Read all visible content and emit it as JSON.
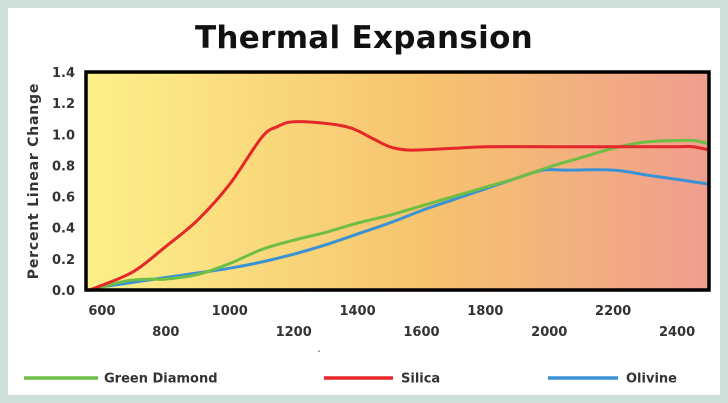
{
  "colors": {
    "background": "#cfe0da",
    "panel": "#ffffff",
    "gradient_left": "#fdf08a",
    "gradient_mid": "#f6c36e",
    "gradient_right": "#ef9e8e",
    "silica": "#e5262b",
    "green_diamond": "#6ebe46",
    "olivine": "#3a92d4"
  },
  "chart_data": {
    "type": "line",
    "title": "Thermal Expansion",
    "ylabel": "Percent Linear Change",
    "xlabel": "",
    "xlim": [
      550,
      2500
    ],
    "ylim": [
      0,
      1.4
    ],
    "grid": false,
    "legend_position": "bottom",
    "x_ticks_upper": [
      "600",
      "1000",
      "1400",
      "1800",
      "2200"
    ],
    "x_ticks_lower": [
      "800",
      "1200",
      "1600",
      "2000",
      "2400"
    ],
    "y_ticks": [
      "0.0",
      "0.2",
      "0.4",
      "0.6",
      "0.8",
      "1.0",
      "1.2",
      "1.4"
    ],
    "series": [
      {
        "name": "Green Diamond",
        "color": "#6ebe46",
        "x": [
          560,
          600,
          680,
          750,
          800,
          900,
          1000,
          1100,
          1200,
          1300,
          1400,
          1500,
          1600,
          1700,
          1800,
          1900,
          2000,
          2100,
          2200,
          2300,
          2400,
          2450,
          2500
        ],
        "y": [
          0.0,
          0.02,
          0.06,
          0.07,
          0.07,
          0.1,
          0.17,
          0.26,
          0.32,
          0.37,
          0.43,
          0.48,
          0.54,
          0.6,
          0.66,
          0.72,
          0.79,
          0.85,
          0.91,
          0.95,
          0.96,
          0.96,
          0.94
        ]
      },
      {
        "name": "Silica",
        "color": "#e5262b",
        "x": [
          560,
          600,
          700,
          800,
          900,
          1000,
          1100,
          1150,
          1200,
          1300,
          1380,
          1450,
          1500,
          1550,
          1600,
          1700,
          1800,
          2000,
          2200,
          2400,
          2450,
          2500
        ],
        "y": [
          0.0,
          0.03,
          0.12,
          0.28,
          0.45,
          0.68,
          0.98,
          1.05,
          1.08,
          1.07,
          1.04,
          0.97,
          0.92,
          0.9,
          0.9,
          0.91,
          0.92,
          0.92,
          0.92,
          0.92,
          0.92,
          0.9
        ]
      },
      {
        "name": "Olivine",
        "color": "#3a92d4",
        "x": [
          560,
          600,
          700,
          800,
          900,
          1000,
          1100,
          1200,
          1300,
          1400,
          1500,
          1600,
          1700,
          1800,
          1900,
          1980,
          2050,
          2200,
          2300,
          2400,
          2500
        ],
        "y": [
          0.0,
          0.02,
          0.05,
          0.08,
          0.11,
          0.14,
          0.18,
          0.23,
          0.29,
          0.36,
          0.43,
          0.51,
          0.58,
          0.65,
          0.72,
          0.77,
          0.77,
          0.77,
          0.74,
          0.71,
          0.68
        ]
      }
    ],
    "stray_mark": "."
  }
}
